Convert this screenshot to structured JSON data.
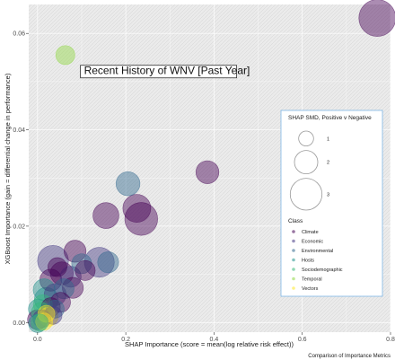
{
  "chart_data": {
    "type": "scatter",
    "title": "",
    "xlabel": "SHAP Importance (score = mean(log relative risk effect))",
    "ylabel": "XGBoost Importance (gain = differential change in performance)",
    "caption": "Comparison of Importance Metrics",
    "xlim": [
      -0.02,
      0.8
    ],
    "ylim": [
      -0.002,
      0.066
    ],
    "x_ticks": [
      0.0,
      0.2,
      0.4,
      0.6,
      0.8
    ],
    "x_tick_labels": [
      "0.0",
      "0.2",
      "0.4",
      "0.6",
      "0.8"
    ],
    "y_ticks": [
      0.0,
      0.02,
      0.04,
      0.06
    ],
    "y_tick_labels": [
      "0.00",
      "0.02",
      "0.04",
      "0.06"
    ],
    "grid": true,
    "annotation": {
      "text": "Recent History of WNV [Past Year]",
      "x": 0.085,
      "y": 0.0545
    },
    "size_legend": {
      "title": "SHAP SMD, Positive v Negative",
      "values": [
        1,
        2,
        3
      ]
    },
    "class_legend": {
      "title": "Class",
      "entries": [
        {
          "label": "Climate",
          "color": "#440154"
        },
        {
          "label": "Economic",
          "color": "#443983"
        },
        {
          "label": "Environmental",
          "color": "#31688e"
        },
        {
          "label": "Hosts",
          "color": "#21918c"
        },
        {
          "label": "Sociodemographic",
          "color": "#35b779"
        },
        {
          "label": "Temporal",
          "color": "#90d743"
        },
        {
          "label": "Vectors",
          "color": "#fde725"
        }
      ]
    },
    "points": [
      {
        "x": 0.77,
        "y": 0.0632,
        "size": 3.0,
        "class": "Climate"
      },
      {
        "x": 0.063,
        "y": 0.0555,
        "size": 1.2,
        "class": "Temporal"
      },
      {
        "x": 0.385,
        "y": 0.0312,
        "size": 1.6,
        "class": "Climate"
      },
      {
        "x": 0.205,
        "y": 0.0288,
        "size": 1.7,
        "class": "Environmental"
      },
      {
        "x": 0.225,
        "y": 0.0237,
        "size": 2.1,
        "class": "Climate"
      },
      {
        "x": 0.235,
        "y": 0.0215,
        "size": 2.6,
        "class": "Climate"
      },
      {
        "x": 0.155,
        "y": 0.0222,
        "size": 1.9,
        "class": "Climate"
      },
      {
        "x": 0.085,
        "y": 0.0148,
        "size": 1.5,
        "class": "Climate"
      },
      {
        "x": 0.16,
        "y": 0.0125,
        "size": 1.4,
        "class": "Environmental"
      },
      {
        "x": 0.14,
        "y": 0.0125,
        "size": 2.3,
        "class": "Economic"
      },
      {
        "x": 0.035,
        "y": 0.0128,
        "size": 2.4,
        "class": "Economic"
      },
      {
        "x": 0.1,
        "y": 0.0122,
        "size": 1.3,
        "class": "Environmental"
      },
      {
        "x": 0.108,
        "y": 0.0108,
        "size": 1.3,
        "class": "Climate"
      },
      {
        "x": 0.045,
        "y": 0.0115,
        "size": 1.2,
        "class": "Climate"
      },
      {
        "x": 0.055,
        "y": 0.0102,
        "size": 1.6,
        "class": "Climate"
      },
      {
        "x": 0.075,
        "y": 0.0095,
        "size": 1.4,
        "class": "Economic"
      },
      {
        "x": 0.03,
        "y": 0.0088,
        "size": 1.5,
        "class": "Climate"
      },
      {
        "x": 0.08,
        "y": 0.0072,
        "size": 1.4,
        "class": "Climate"
      },
      {
        "x": 0.06,
        "y": 0.007,
        "size": 1.3,
        "class": "Environmental"
      },
      {
        "x": 0.015,
        "y": 0.0068,
        "size": 1.5,
        "class": "Hosts"
      },
      {
        "x": 0.04,
        "y": 0.0058,
        "size": 1.5,
        "class": "Economic"
      },
      {
        "x": 0.02,
        "y": 0.0048,
        "size": 1.7,
        "class": "Hosts"
      },
      {
        "x": 0.052,
        "y": 0.0042,
        "size": 1.3,
        "class": "Climate"
      },
      {
        "x": 0.012,
        "y": 0.0038,
        "size": 1.2,
        "class": "Sociodemographic"
      },
      {
        "x": 0.03,
        "y": 0.0032,
        "size": 1.2,
        "class": "Climate"
      },
      {
        "x": 0.002,
        "y": 0.0028,
        "size": 1.3,
        "class": "Hosts"
      },
      {
        "x": 0.04,
        "y": 0.0028,
        "size": 1.1,
        "class": "Environmental"
      },
      {
        "x": 0.008,
        "y": 0.0022,
        "size": 1.2,
        "class": "Sociodemographic"
      },
      {
        "x": 0.02,
        "y": 0.0018,
        "size": 1.0,
        "class": "Vectors"
      },
      {
        "x": 0.025,
        "y": 0.0012,
        "size": 1.2,
        "class": "Vectors"
      },
      {
        "x": 0.035,
        "y": 0.0015,
        "size": 1.1,
        "class": "Economic"
      },
      {
        "x": 0.0,
        "y": 0.0006,
        "size": 1.3,
        "class": "Climate"
      },
      {
        "x": 0.01,
        "y": 0.0008,
        "size": 1.1,
        "class": "Economic"
      },
      {
        "x": 0.015,
        "y": 0.0002,
        "size": 1.0,
        "class": "Vectors"
      },
      {
        "x": 0.0,
        "y": -0.0002,
        "size": 1.1,
        "class": "Hosts"
      },
      {
        "x": 0.005,
        "y": 0.0,
        "size": 1.0,
        "class": "Sociodemographic"
      }
    ]
  }
}
